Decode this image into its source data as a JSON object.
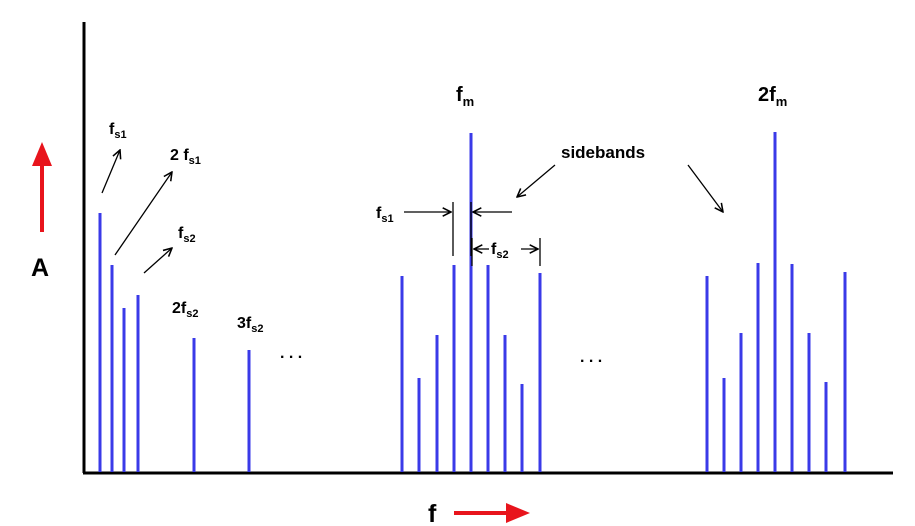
{
  "axes": {
    "y_label": "A",
    "x_label": "f",
    "arrow_color": "#e8141c",
    "line_color": "#000000"
  },
  "line_color": "#3a3ae8",
  "labels": {
    "fs1_main": "f",
    "fs1_main_sub": "s1",
    "two_fs1": "2 f",
    "two_fs1_sub": "s1",
    "fs2": "f",
    "fs2_sub": "s2",
    "two_fs2": "2f",
    "two_fs2_sub": "s2",
    "three_fs2": "3f",
    "three_fs2_sub": "s2",
    "fm": "f",
    "fm_sub": "m",
    "two_fm": "2f",
    "two_fm_sub": "m",
    "sidebands": "sidebands",
    "fs1_spacing": "f",
    "fs1_spacing_sub": "s1",
    "fs2_spacing": "f",
    "fs2_spacing_sub": "s2",
    "ellipsis_1": ". . .",
    "ellipsis_2": ". . ."
  }
}
